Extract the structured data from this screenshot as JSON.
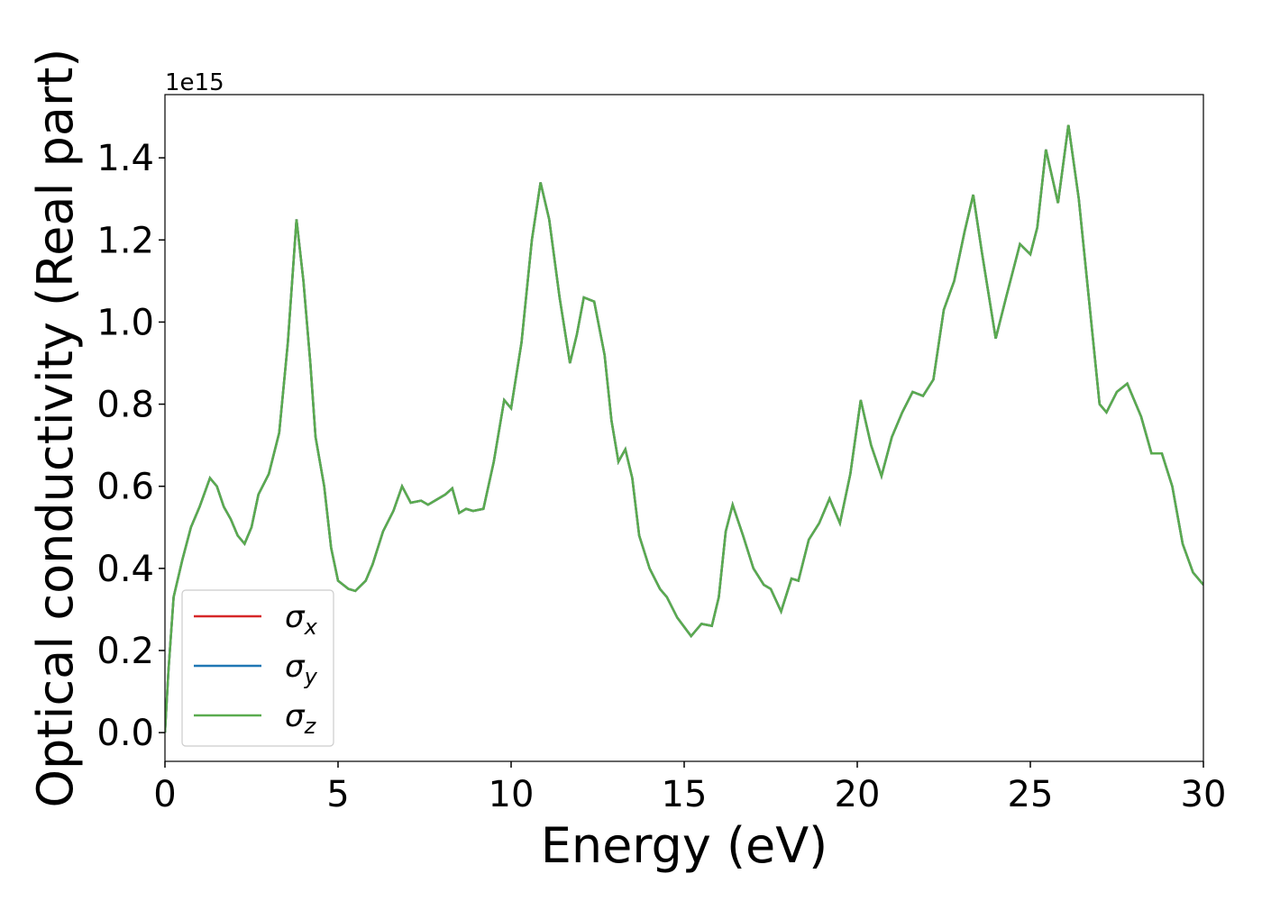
{
  "chart_data": {
    "type": "line",
    "xlabel": "Energy (eV)",
    "ylabel": "Optical conductivity (Real part)",
    "y_offset_label": "1e15",
    "x": [
      0,
      0.1,
      0.25,
      0.5,
      0.75,
      1.0,
      1.3,
      1.5,
      1.7,
      1.9,
      2.1,
      2.3,
      2.5,
      2.7,
      3.0,
      3.3,
      3.55,
      3.8,
      4.0,
      4.2,
      4.35,
      4.6,
      4.8,
      5.0,
      5.3,
      5.5,
      5.8,
      6.0,
      6.3,
      6.6,
      6.85,
      7.1,
      7.4,
      7.6,
      7.9,
      8.1,
      8.3,
      8.5,
      8.7,
      8.9,
      9.2,
      9.5,
      9.8,
      10.0,
      10.3,
      10.6,
      10.85,
      11.1,
      11.4,
      11.7,
      11.9,
      12.1,
      12.4,
      12.7,
      12.9,
      13.1,
      13.3,
      13.5,
      13.7,
      14.0,
      14.3,
      14.5,
      14.8,
      15.2,
      15.5,
      15.8,
      16.0,
      16.2,
      16.4,
      16.7,
      17.0,
      17.3,
      17.5,
      17.8,
      18.1,
      18.3,
      18.6,
      18.9,
      19.2,
      19.5,
      19.8,
      20.1,
      20.4,
      20.7,
      21.0,
      21.3,
      21.6,
      21.9,
      22.2,
      22.5,
      22.8,
      23.1,
      23.35,
      23.6,
      24.0,
      24.3,
      24.7,
      25.0,
      25.2,
      25.45,
      25.8,
      26.1,
      26.4,
      26.7,
      27.0,
      27.2,
      27.5,
      27.8,
      28.2,
      28.5,
      28.8,
      29.1,
      29.4,
      29.7,
      30.0
    ],
    "series": [
      {
        "name": "σx",
        "color": "#d62728",
        "values": [
          0.0,
          0.15,
          0.33,
          0.42,
          0.5,
          0.55,
          0.62,
          0.6,
          0.55,
          0.52,
          0.48,
          0.46,
          0.5,
          0.58,
          0.63,
          0.73,
          0.95,
          1.25,
          1.1,
          0.9,
          0.72,
          0.6,
          0.45,
          0.37,
          0.35,
          0.345,
          0.37,
          0.41,
          0.49,
          0.54,
          0.6,
          0.56,
          0.565,
          0.555,
          0.57,
          0.58,
          0.595,
          0.535,
          0.545,
          0.54,
          0.545,
          0.66,
          0.81,
          0.79,
          0.95,
          1.2,
          1.34,
          1.25,
          1.06,
          0.9,
          0.97,
          1.06,
          1.05,
          0.92,
          0.76,
          0.66,
          0.69,
          0.62,
          0.48,
          0.4,
          0.35,
          0.33,
          0.28,
          0.235,
          0.265,
          0.26,
          0.33,
          0.49,
          0.555,
          0.48,
          0.4,
          0.36,
          0.35,
          0.295,
          0.375,
          0.37,
          0.47,
          0.51,
          0.57,
          0.51,
          0.63,
          0.81,
          0.7,
          0.625,
          0.72,
          0.78,
          0.83,
          0.82,
          0.86,
          1.03,
          1.1,
          1.22,
          1.31,
          1.17,
          0.96,
          1.06,
          1.19,
          1.165,
          1.23,
          1.42,
          1.29,
          1.48,
          1.3,
          1.05,
          0.8,
          0.78,
          0.83,
          0.85,
          0.77,
          0.68,
          0.68,
          0.6,
          0.46,
          0.39,
          0.36
        ]
      },
      {
        "name": "σy",
        "color": "#1f77b4",
        "values": [
          0.0,
          0.15,
          0.33,
          0.42,
          0.5,
          0.55,
          0.62,
          0.6,
          0.55,
          0.52,
          0.48,
          0.46,
          0.5,
          0.58,
          0.63,
          0.73,
          0.95,
          1.25,
          1.1,
          0.9,
          0.72,
          0.6,
          0.45,
          0.37,
          0.35,
          0.345,
          0.37,
          0.41,
          0.49,
          0.54,
          0.6,
          0.56,
          0.565,
          0.555,
          0.57,
          0.58,
          0.595,
          0.535,
          0.545,
          0.54,
          0.545,
          0.66,
          0.81,
          0.79,
          0.95,
          1.2,
          1.34,
          1.25,
          1.06,
          0.9,
          0.97,
          1.06,
          1.05,
          0.92,
          0.76,
          0.66,
          0.69,
          0.62,
          0.48,
          0.4,
          0.35,
          0.33,
          0.28,
          0.235,
          0.265,
          0.26,
          0.33,
          0.49,
          0.555,
          0.48,
          0.4,
          0.36,
          0.35,
          0.295,
          0.375,
          0.37,
          0.47,
          0.51,
          0.57,
          0.51,
          0.63,
          0.81,
          0.7,
          0.625,
          0.72,
          0.78,
          0.83,
          0.82,
          0.86,
          1.03,
          1.1,
          1.22,
          1.31,
          1.17,
          0.96,
          1.06,
          1.19,
          1.165,
          1.23,
          1.42,
          1.29,
          1.48,
          1.3,
          1.05,
          0.8,
          0.78,
          0.83,
          0.85,
          0.77,
          0.68,
          0.68,
          0.6,
          0.46,
          0.39,
          0.36
        ]
      },
      {
        "name": "σz",
        "color": "#5aab4f",
        "values": [
          0.0,
          0.15,
          0.33,
          0.42,
          0.5,
          0.55,
          0.62,
          0.6,
          0.55,
          0.52,
          0.48,
          0.46,
          0.5,
          0.58,
          0.63,
          0.73,
          0.95,
          1.25,
          1.1,
          0.9,
          0.72,
          0.6,
          0.45,
          0.37,
          0.35,
          0.345,
          0.37,
          0.41,
          0.49,
          0.54,
          0.6,
          0.56,
          0.565,
          0.555,
          0.57,
          0.58,
          0.595,
          0.535,
          0.545,
          0.54,
          0.545,
          0.66,
          0.81,
          0.79,
          0.95,
          1.2,
          1.34,
          1.25,
          1.06,
          0.9,
          0.97,
          1.06,
          1.05,
          0.92,
          0.76,
          0.66,
          0.69,
          0.62,
          0.48,
          0.4,
          0.35,
          0.33,
          0.28,
          0.235,
          0.265,
          0.26,
          0.33,
          0.49,
          0.555,
          0.48,
          0.4,
          0.36,
          0.35,
          0.295,
          0.375,
          0.37,
          0.47,
          0.51,
          0.57,
          0.51,
          0.63,
          0.81,
          0.7,
          0.625,
          0.72,
          0.78,
          0.83,
          0.82,
          0.86,
          1.03,
          1.1,
          1.22,
          1.31,
          1.17,
          0.96,
          1.06,
          1.19,
          1.165,
          1.23,
          1.42,
          1.29,
          1.48,
          1.3,
          1.05,
          0.8,
          0.78,
          0.83,
          0.85,
          0.77,
          0.68,
          0.68,
          0.6,
          0.46,
          0.39,
          0.36
        ]
      }
    ],
    "xlim": [
      0,
      30
    ],
    "xticks": [
      0,
      5,
      10,
      15,
      20,
      25,
      30
    ],
    "ylim": [
      -0.07,
      1.554
    ],
    "yticks": [
      {
        "value": 0,
        "label": "0.0"
      },
      0.2,
      0.4,
      0.6,
      0.8,
      {
        "value": 1,
        "label": "1.0"
      },
      1.2,
      1.4
    ],
    "grid": false,
    "legend": "lower left"
  }
}
